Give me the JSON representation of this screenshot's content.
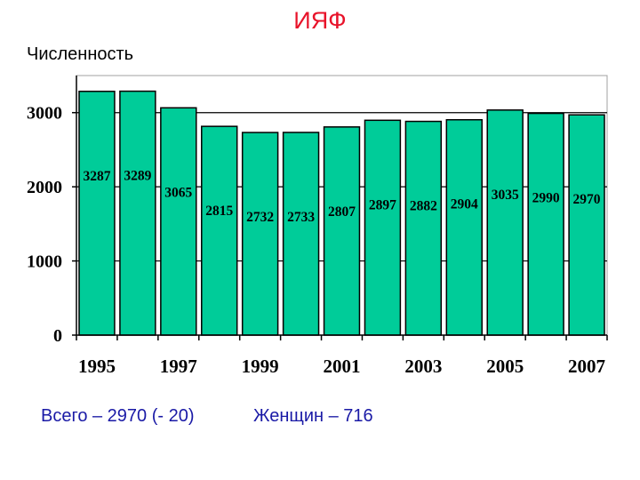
{
  "header": {
    "title": "ИЯФ",
    "subtitle": "Численность"
  },
  "footer": {
    "total": "Всего – 2970 (- 20)",
    "women": "Женщин – 716"
  },
  "chart_data": {
    "type": "bar",
    "title": "ИЯФ",
    "ylabel": "Численность",
    "xlabel": "",
    "categories": [
      "1995",
      "1996",
      "1997",
      "1998",
      "1999",
      "2000",
      "2001",
      "2002",
      "2003",
      "2004",
      "2005",
      "2006",
      "2007"
    ],
    "x_tick_labels": [
      "1995",
      "1997",
      "1999",
      "2001",
      "2003",
      "2005",
      "2007"
    ],
    "values": [
      3287,
      3289,
      3065,
      2815,
      2732,
      2733,
      2807,
      2897,
      2882,
      2904,
      3035,
      2990,
      2970
    ],
    "data_labels": [
      "3287",
      "3289",
      "3065",
      "2815",
      "2732",
      "2733",
      "2807",
      "2897",
      "2882",
      "2904",
      "3035",
      "2990",
      "2970"
    ],
    "y_ticks": [
      "0",
      "1000",
      "2000",
      "3000"
    ],
    "ylim": [
      0,
      3500
    ],
    "grid": "horizontal",
    "legend": "none",
    "bar_color": "#00cc99",
    "title_color": "#e8132a",
    "footer_color": "#1a1aa6"
  }
}
